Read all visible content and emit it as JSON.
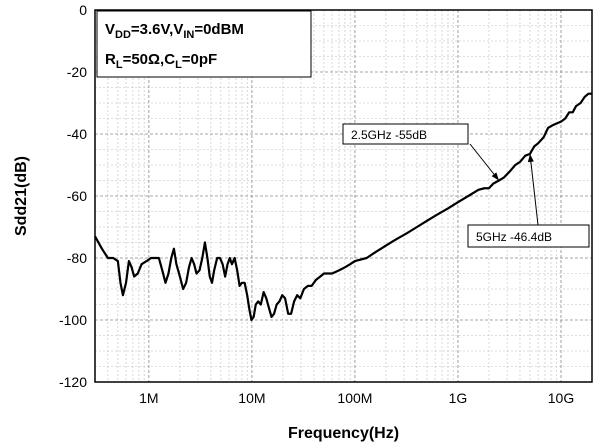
{
  "chart_data": {
    "type": "line",
    "xlabel": "Frequency(Hz)",
    "ylabel": "Sdd21(dB)",
    "x_scale": "log",
    "xlim": [
      300000,
      20000000000
    ],
    "ylim": [
      -120,
      0
    ],
    "x_ticks": [
      {
        "value": 1000000,
        "label": "1M"
      },
      {
        "value": 10000000,
        "label": "10M"
      },
      {
        "value": 100000000,
        "label": "100M"
      },
      {
        "value": 1000000000,
        "label": "1G"
      },
      {
        "value": 10000000000,
        "label": "10G"
      }
    ],
    "y_ticks": [
      {
        "value": 0,
        "label": "0"
      },
      {
        "value": -20,
        "label": "-20"
      },
      {
        "value": -40,
        "label": "-40"
      },
      {
        "value": -60,
        "label": "-60"
      },
      {
        "value": -80,
        "label": "-80"
      },
      {
        "value": -100,
        "label": "-100"
      },
      {
        "value": -120,
        "label": "-120"
      }
    ],
    "grid": true,
    "legend_box": {
      "line1": {
        "prefix": "V",
        "sub1": "DD",
        "mid": "=3.6V,V",
        "sub2": "IN",
        "suffix": "=0dBM"
      },
      "line2": {
        "prefix": "R",
        "sub1": "L",
        "mid": "=50Ω,C",
        "sub2": "L",
        "suffix": "=0pF"
      }
    },
    "annotations": [
      {
        "text": "2.5GHz -55dB",
        "x": 2500000000,
        "y": -55
      },
      {
        "text": "5GHz -46.4dB",
        "x": 5000000000,
        "y": -46.4
      }
    ],
    "series": [
      {
        "color": "#000000",
        "points": [
          [
            300000,
            -73
          ],
          [
            350000,
            -77
          ],
          [
            400000,
            -80
          ],
          [
            450000,
            -80
          ],
          [
            500000,
            -81
          ],
          [
            530000,
            -88
          ],
          [
            560000,
            -92
          ],
          [
            600000,
            -88
          ],
          [
            640000,
            -81
          ],
          [
            680000,
            -83
          ],
          [
            720000,
            -86
          ],
          [
            780000,
            -85
          ],
          [
            850000,
            -82
          ],
          [
            950000,
            -81
          ],
          [
            1050000,
            -80
          ],
          [
            1150000,
            -80
          ],
          [
            1250000,
            -80
          ],
          [
            1350000,
            -84
          ],
          [
            1450000,
            -88
          ],
          [
            1550000,
            -85
          ],
          [
            1650000,
            -80
          ],
          [
            1750000,
            -77
          ],
          [
            1850000,
            -82
          ],
          [
            2000000,
            -86
          ],
          [
            2150000,
            -90
          ],
          [
            2300000,
            -88
          ],
          [
            2450000,
            -83
          ],
          [
            2600000,
            -80
          ],
          [
            2750000,
            -82
          ],
          [
            2900000,
            -85
          ],
          [
            3100000,
            -84
          ],
          [
            3300000,
            -80
          ],
          [
            3500000,
            -75
          ],
          [
            3700000,
            -80
          ],
          [
            3900000,
            -86
          ],
          [
            4100000,
            -88
          ],
          [
            4300000,
            -84
          ],
          [
            4600000,
            -80
          ],
          [
            4900000,
            -80
          ],
          [
            5200000,
            -82
          ],
          [
            5500000,
            -86
          ],
          [
            5800000,
            -82
          ],
          [
            6100000,
            -80
          ],
          [
            6400000,
            -82
          ],
          [
            6800000,
            -80
          ],
          [
            7200000,
            -84
          ],
          [
            7600000,
            -89
          ],
          [
            8000000,
            -88
          ],
          [
            8500000,
            -88
          ],
          [
            9000000,
            -92
          ],
          [
            9500000,
            -97
          ],
          [
            9900000,
            -100
          ],
          [
            10400000,
            -99
          ],
          [
            10900000,
            -95
          ],
          [
            11500000,
            -94
          ],
          [
            12200000,
            -95
          ],
          [
            13000000,
            -91
          ],
          [
            13800000,
            -93
          ],
          [
            14600000,
            -96
          ],
          [
            15500000,
            -99
          ],
          [
            16400000,
            -98
          ],
          [
            17400000,
            -95
          ],
          [
            18500000,
            -94
          ],
          [
            19700000,
            -92
          ],
          [
            21000000,
            -93
          ],
          [
            22500000,
            -98
          ],
          [
            24000000,
            -98
          ],
          [
            25700000,
            -94
          ],
          [
            27500000,
            -92
          ],
          [
            29500000,
            -93
          ],
          [
            32000000,
            -90
          ],
          [
            35000000,
            -89
          ],
          [
            38000000,
            -89
          ],
          [
            42000000,
            -87
          ],
          [
            46000000,
            -86
          ],
          [
            50000000,
            -85
          ],
          [
            55000000,
            -85
          ],
          [
            60000000,
            -85
          ],
          [
            70000000,
            -84
          ],
          [
            80000000,
            -83
          ],
          [
            90000000,
            -82
          ],
          [
            100000000,
            -81
          ],
          [
            130000000,
            -80
          ],
          [
            160000000,
            -78
          ],
          [
            200000000,
            -76
          ],
          [
            250000000,
            -74
          ],
          [
            320000000,
            -72
          ],
          [
            400000000,
            -70
          ],
          [
            500000000,
            -68
          ],
          [
            630000000,
            -66
          ],
          [
            800000000,
            -64
          ],
          [
            1000000000,
            -62
          ],
          [
            1260000000,
            -60
          ],
          [
            1580000000,
            -58
          ],
          [
            1800000000,
            -57.5
          ],
          [
            2000000000,
            -57.5
          ],
          [
            2200000000,
            -56
          ],
          [
            2500000000,
            -55
          ],
          [
            2800000000,
            -54
          ],
          [
            3200000000,
            -52
          ],
          [
            3600000000,
            -50
          ],
          [
            4000000000,
            -49
          ],
          [
            4500000000,
            -47
          ],
          [
            5000000000,
            -46.4
          ],
          [
            5500000000,
            -44
          ],
          [
            6000000000,
            -43
          ],
          [
            6800000000,
            -41
          ],
          [
            7500000000,
            -38
          ],
          [
            8500000000,
            -37
          ],
          [
            10000000000,
            -36
          ],
          [
            11000000000,
            -35
          ],
          [
            12000000000,
            -33
          ],
          [
            13000000000,
            -33
          ],
          [
            14000000000,
            -31
          ],
          [
            15500000000,
            -30
          ],
          [
            17000000000,
            -28
          ],
          [
            18500000000,
            -27
          ],
          [
            20000000000,
            -27
          ]
        ]
      }
    ]
  }
}
